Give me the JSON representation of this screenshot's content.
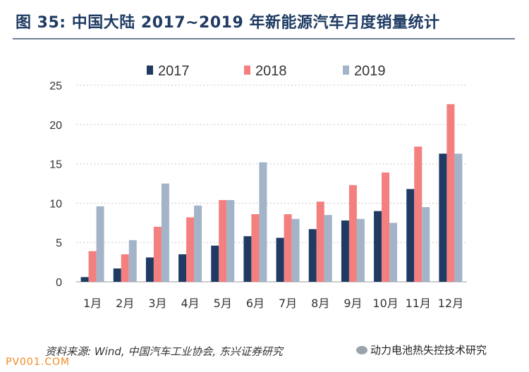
{
  "title": "图 35: 中国大陆 2017~2019 年新能源汽车月度销量统计",
  "footer": "资料来源: Wind, 中国汽车工业协会, 东兴证券研究",
  "watermark": "动力电池热失控技术研究",
  "corner_mark": "PV001.COM",
  "chart_data": {
    "type": "bar",
    "categories": [
      "1月",
      "2月",
      "3月",
      "4月",
      "5月",
      "6月",
      "7月",
      "8月",
      "9月",
      "10月",
      "11月",
      "12月"
    ],
    "series": [
      {
        "name": "2017",
        "color": "#1f3b63",
        "values": [
          0.6,
          1.7,
          3.1,
          3.5,
          4.6,
          5.8,
          5.6,
          6.7,
          7.8,
          9.0,
          11.8,
          16.3
        ]
      },
      {
        "name": "2018",
        "color": "#f47f7f",
        "values": [
          3.9,
          3.5,
          7.0,
          8.2,
          10.4,
          8.6,
          8.6,
          10.2,
          12.3,
          13.9,
          17.2,
          22.6
        ]
      },
      {
        "name": "2019",
        "color": "#a3b4c8",
        "values": [
          9.6,
          5.3,
          12.5,
          9.7,
          10.4,
          15.2,
          8.0,
          8.5,
          8.0,
          7.5,
          9.5,
          16.3
        ]
      }
    ],
    "ylim": [
      0,
      25
    ],
    "yticks": [
      "0",
      "5",
      "10",
      "15",
      "20",
      "25"
    ],
    "grid": true,
    "legend": "top"
  }
}
